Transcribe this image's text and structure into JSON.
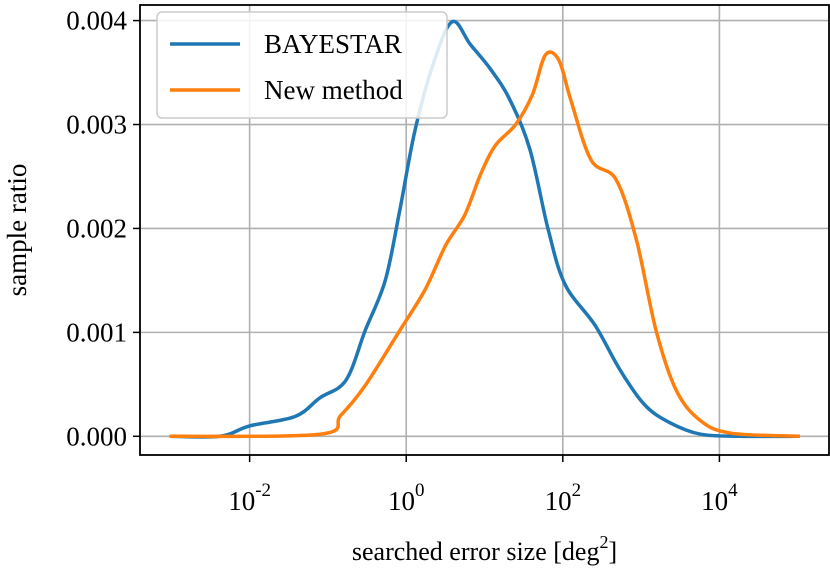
{
  "chart_data": {
    "type": "line",
    "xlabel": {
      "text": "searched error size [deg",
      "sup": "2",
      "end": "]"
    },
    "ylabel": "sample ratio",
    "xscale": "log",
    "xlim": [
      0.000398,
      251000
    ],
    "ylim": [
      -0.00018,
      0.00415
    ],
    "xticks": [
      {
        "value": 0.01,
        "label": "10",
        "sup": "-2"
      },
      {
        "value": 1,
        "label": "10",
        "sup": "0"
      },
      {
        "value": 100,
        "label": "10",
        "sup": "2"
      },
      {
        "value": 10000,
        "label": "10",
        "sup": "4"
      }
    ],
    "yticks": [
      {
        "value": 0,
        "label": "0.000"
      },
      0.001,
      0.002,
      0.003,
      0.004
    ],
    "grid": true,
    "legend": "upper left",
    "series": [
      {
        "name": "BAYESTAR",
        "color": "#1f77b4",
        "x": [
          0.00095,
          0.0042,
          0.01,
          0.038,
          0.079,
          0.17,
          0.3,
          0.54,
          0.83,
          1.3,
          2.3,
          3.9,
          6.6,
          12,
          21,
          38,
          65,
          107,
          257,
          537,
          1120,
          2340,
          5750,
          18600,
          107000
        ],
        "values": [
          0,
          0,
          0.0001,
          0.00019,
          0.00037,
          0.00054,
          0.00102,
          0.0015,
          0.00218,
          0.00295,
          0.00362,
          0.00399,
          0.00377,
          0.00353,
          0.00324,
          0.00276,
          0.00199,
          0.00146,
          0.00107,
          0.00064,
          0.0003,
          0.00013,
          2e-05,
          0,
          0
        ]
      },
      {
        "name": "New method",
        "color": "#ff7f0e",
        "x": [
          0.00095,
          0.079,
          0.145,
          0.3,
          0.83,
          1.74,
          3.2,
          5.6,
          8.9,
          13.8,
          25,
          41,
          60,
          89,
          126,
          229,
          479,
          871,
          1550,
          2820,
          5750,
          14100,
          107000
        ],
        "values": [
          0,
          2e-05,
          0.0002,
          0.00049,
          0.00102,
          0.00141,
          0.00184,
          0.00213,
          0.00252,
          0.0028,
          0.003,
          0.00329,
          0.00367,
          0.00362,
          0.00324,
          0.00266,
          0.00247,
          0.00189,
          0.00102,
          0.00044,
          0.00015,
          3e-05,
          0
        ]
      }
    ]
  }
}
